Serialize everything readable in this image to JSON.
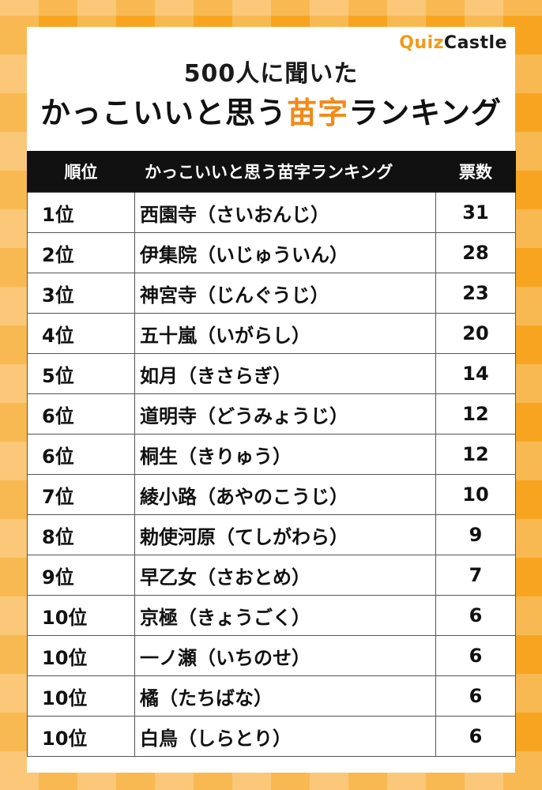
{
  "logo": {
    "part1": "Quiz",
    "part2": "Castle"
  },
  "title": {
    "line1": "500人に聞いた",
    "line2_prefix": "かっこいいと思う",
    "line2_accent": "苗字",
    "line2_suffix": "ランキング"
  },
  "table": {
    "headers": {
      "rank": "順位",
      "name": "かっこいいと思う苗字ランキング",
      "votes": "票数"
    },
    "rows": [
      {
        "rank": "1位",
        "name": "西園寺（さいおんじ）",
        "votes": "31"
      },
      {
        "rank": "2位",
        "name": "伊集院（いじゅういん）",
        "votes": "28"
      },
      {
        "rank": "3位",
        "name": "神宮寺（じんぐうじ）",
        "votes": "23"
      },
      {
        "rank": "4位",
        "name": "五十嵐（いがらし）",
        "votes": "20"
      },
      {
        "rank": "5位",
        "name": "如月（きさらぎ）",
        "votes": "14"
      },
      {
        "rank": "6位",
        "name": "道明寺（どうみょうじ）",
        "votes": "12"
      },
      {
        "rank": "6位",
        "name": "桐生（きりゅう）",
        "votes": "12"
      },
      {
        "rank": "7位",
        "name": "綾小路（あやのこうじ）",
        "votes": "10"
      },
      {
        "rank": "8位",
        "name": "勅使河原（てしがわら）",
        "votes": "9"
      },
      {
        "rank": "9位",
        "name": "早乙女（さおとめ）",
        "votes": "7"
      },
      {
        "rank": "10位",
        "name": "京極（きょうごく）",
        "votes": "6"
      },
      {
        "rank": "10位",
        "name": "一ノ瀬（いちのせ）",
        "votes": "6"
      },
      {
        "rank": "10位",
        "name": "橘（たちばな）",
        "votes": "6"
      },
      {
        "rank": "10位",
        "name": "白鳥（しらとり）",
        "votes": "6"
      }
    ]
  }
}
